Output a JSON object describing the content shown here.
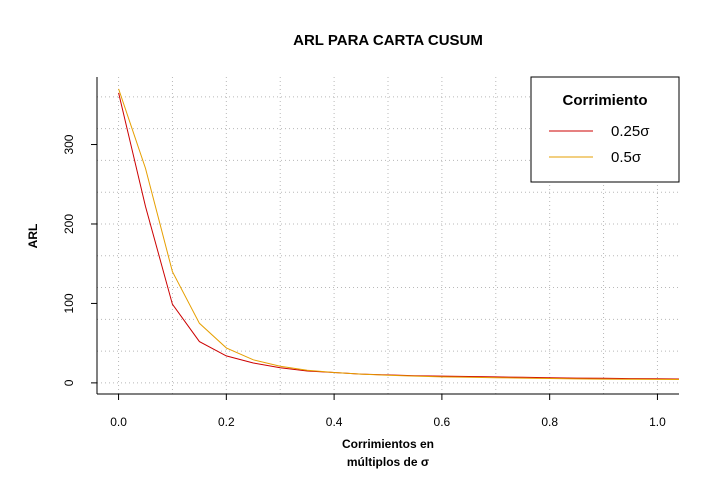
{
  "chart_data": {
    "type": "line",
    "title": "ARL PARA CARTA CUSUM",
    "xlabel_line1": "Corrimientos en",
    "xlabel_line2": "múltiplos de σ",
    "ylabel": "ARL",
    "xlim": [
      -0.04,
      1.04
    ],
    "ylim": [
      -14,
      385
    ],
    "x_ticks": [
      "0.0",
      "0.2",
      "0.4",
      "0.6",
      "0.8",
      "1.0"
    ],
    "x_tick_values": [
      0.0,
      0.2,
      0.4,
      0.6,
      0.8,
      1.0
    ],
    "y_ticks": [
      "0",
      "100",
      "200",
      "300"
    ],
    "y_tick_values": [
      0,
      100,
      200,
      300
    ],
    "grid": true,
    "legend": {
      "title": "Corrimiento",
      "position": "top-right"
    },
    "x": [
      0.0,
      0.05,
      0.1,
      0.15,
      0.2,
      0.25,
      0.3,
      0.35,
      0.4,
      0.45,
      0.5,
      0.55,
      0.6,
      0.65,
      0.7,
      0.75,
      0.8,
      0.85,
      0.9,
      0.95,
      1.0,
      1.04
    ],
    "series": [
      {
        "name": "0.25σ",
        "color": "#cc0000",
        "values": [
          365,
          222,
          99,
          52,
          34,
          25,
          19,
          15,
          13,
          11,
          10,
          9,
          8.5,
          8,
          7.5,
          7,
          6.5,
          6,
          5.7,
          5.4,
          5.1,
          4.9
        ]
      },
      {
        "name": "0.5σ",
        "color": "#e69f00",
        "values": [
          370,
          270,
          140,
          75,
          44,
          29,
          21,
          16,
          13,
          11,
          9.5,
          8.5,
          7.5,
          7,
          6.5,
          6,
          5.5,
          5,
          4.8,
          4.6,
          4.4,
          4.2
        ]
      }
    ]
  }
}
